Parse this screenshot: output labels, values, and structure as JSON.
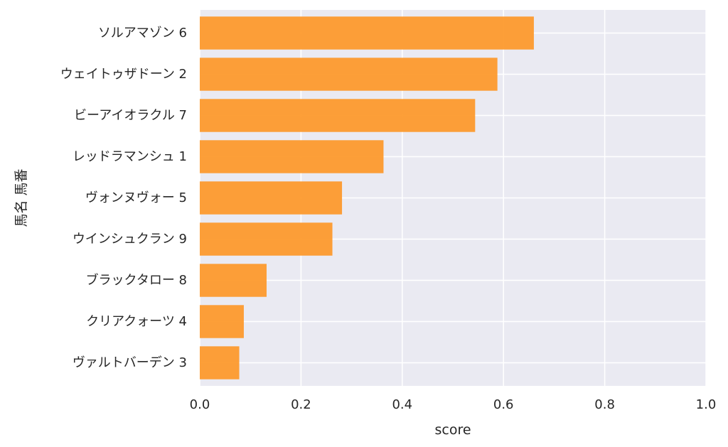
{
  "chart_data": {
    "type": "bar",
    "orientation": "horizontal",
    "categories": [
      "ソルアマゾン 6",
      "ウェイトゥザドーン 2",
      "ビーアイオラクル 7",
      "レッドラマンシュ 1",
      "ヴォンヌヴォー 5",
      "ウインシュクラン 9",
      "ブラックタロー 8",
      "クリアクォーツ 4",
      "ヴァルトバーデン 3"
    ],
    "values": [
      0.66,
      0.588,
      0.544,
      0.363,
      0.281,
      0.262,
      0.132,
      0.087,
      0.078
    ],
    "xlabel": "score",
    "ylabel": "馬名 馬番",
    "xlim": [
      0,
      1.0
    ],
    "xticks": [
      "0.0",
      "0.2",
      "0.4",
      "0.6",
      "0.8",
      "1.0"
    ],
    "xtick_values": [
      0,
      0.2,
      0.4,
      0.6,
      0.8,
      1.0
    ],
    "grid": true,
    "bar_color": "#fd9a2d",
    "background_color": "#eaeaf2",
    "grid_color": "#ffffff"
  }
}
